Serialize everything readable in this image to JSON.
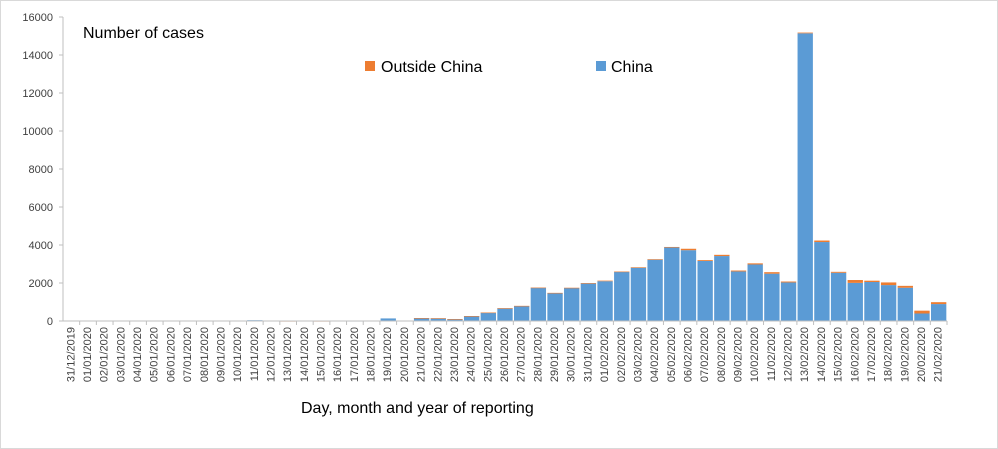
{
  "chart_data": {
    "type": "bar",
    "stacked": true,
    "title": "",
    "ylabel": "Number of cases",
    "xlabel": "Day, month and year of reporting",
    "ylim": [
      0,
      16000
    ],
    "yticks": [
      0,
      2000,
      4000,
      6000,
      8000,
      10000,
      12000,
      14000,
      16000
    ],
    "grid": false,
    "legend_position": "top",
    "categories": [
      "31/12/2019",
      "01/01/2020",
      "02/01/2020",
      "03/01/2020",
      "04/01/2020",
      "05/01/2020",
      "06/01/2020",
      "07/01/2020",
      "08/01/2020",
      "09/01/2020",
      "10/01/2020",
      "11/01/2020",
      "12/01/2020",
      "13/01/2020",
      "14/01/2020",
      "15/01/2020",
      "16/01/2020",
      "17/01/2020",
      "18/01/2020",
      "19/01/2020",
      "20/01/2020",
      "21/01/2020",
      "22/01/2020",
      "23/01/2020",
      "24/01/2020",
      "25/01/2020",
      "26/01/2020",
      "27/01/2020",
      "28/01/2020",
      "29/01/2020",
      "30/01/2020",
      "31/01/2020",
      "01/02/2020",
      "02/02/2020",
      "03/02/2020",
      "04/02/2020",
      "05/02/2020",
      "06/02/2020",
      "07/02/2020",
      "08/02/2020",
      "09/02/2020",
      "10/02/2020",
      "11/02/2020",
      "12/02/2020",
      "13/02/2020",
      "14/02/2020",
      "15/02/2020",
      "16/02/2020",
      "17/02/2020",
      "18/02/2020",
      "19/02/2020",
      "20/02/2020",
      "21/02/2020"
    ],
    "series": [
      {
        "name": "China",
        "color": "#5B9BD5",
        "values": [
          27,
          0,
          0,
          17,
          0,
          15,
          0,
          0,
          0,
          0,
          0,
          41,
          0,
          0,
          0,
          0,
          0,
          4,
          17,
          136,
          19,
          151,
          140,
          97,
          259,
          441,
          665,
          787,
          1753,
          1466,
          1740,
          1980,
          2095,
          2590,
          2812,
          3237,
          3872,
          3727,
          3160,
          3418,
          2607,
          2974,
          2490,
          2028,
          15141,
          4156,
          2538,
          2007,
          2052,
          1890,
          1750,
          394,
          891
        ]
      },
      {
        "name": "Outside China",
        "color": "#ED7D31",
        "values": [
          0,
          0,
          0,
          0,
          0,
          0,
          0,
          0,
          0,
          0,
          0,
          0,
          0,
          1,
          0,
          1,
          0,
          1,
          0,
          0,
          2,
          3,
          4,
          5,
          3,
          5,
          10,
          11,
          5,
          15,
          10,
          15,
          30,
          12,
          15,
          14,
          25,
          75,
          45,
          65,
          50,
          60,
          80,
          50,
          39,
          80,
          50,
          150,
          70,
          140,
          100,
          150,
          100
        ]
      }
    ]
  }
}
